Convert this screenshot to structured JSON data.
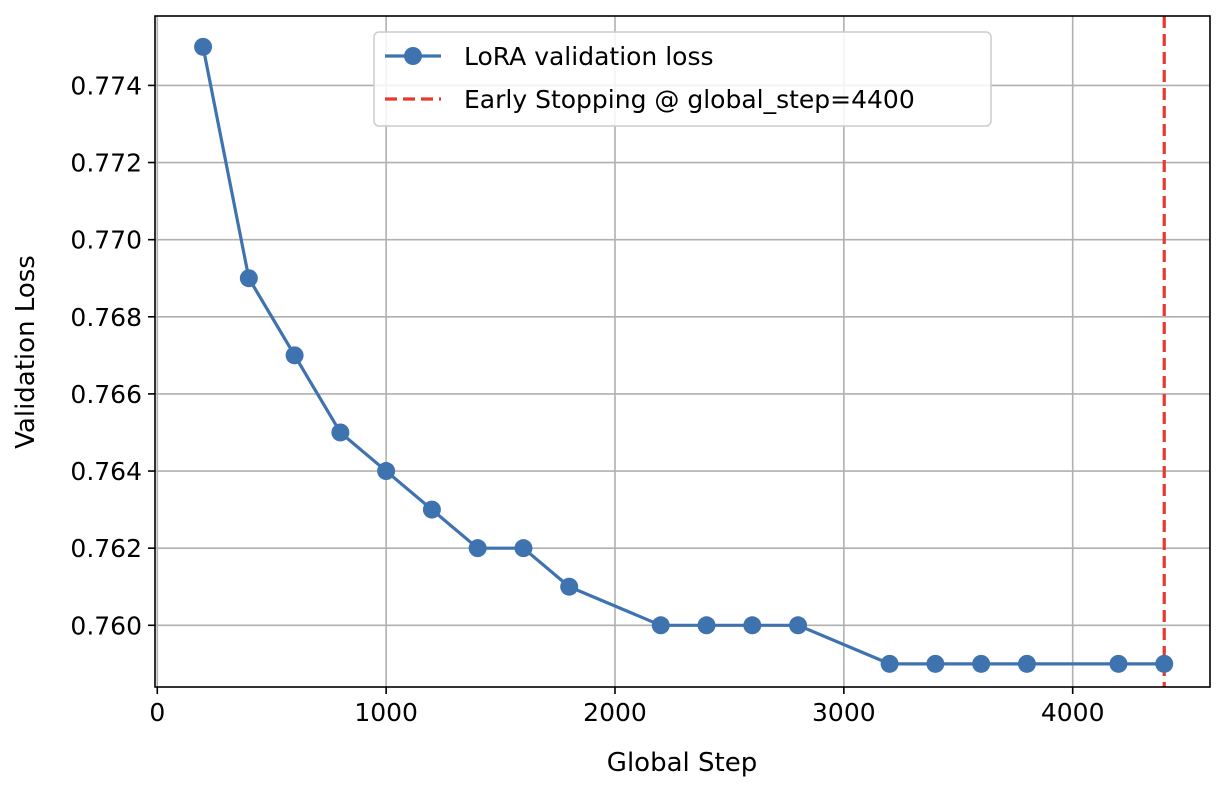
{
  "chart_data": {
    "type": "line",
    "title": "",
    "xlabel": "Global Step",
    "ylabel": "Validation Loss",
    "xlim": [
      -10,
      4600
    ],
    "ylim": [
      0.7584,
      0.7758
    ],
    "xticks": [
      0,
      1000,
      2000,
      3000,
      4000
    ],
    "xtick_labels": [
      "0",
      "1000",
      "2000",
      "3000",
      "4000"
    ],
    "yticks": [
      0.76,
      0.762,
      0.764,
      0.766,
      0.768,
      0.77,
      0.772,
      0.774
    ],
    "ytick_labels": [
      "0.760",
      "0.762",
      "0.764",
      "0.766",
      "0.768",
      "0.770",
      "0.772",
      "0.774"
    ],
    "grid": true,
    "legend_position": "top-center",
    "series": [
      {
        "name": "LoRA validation loss",
        "color": "#3f73af",
        "marker": "circle",
        "x": [
          200,
          400,
          600,
          800,
          1000,
          1200,
          1400,
          1600,
          1800,
          2200,
          2400,
          2600,
          2800,
          3200,
          3400,
          3600,
          3800,
          4200,
          4400
        ],
        "y": [
          0.775,
          0.769,
          0.767,
          0.765,
          0.764,
          0.763,
          0.762,
          0.762,
          0.761,
          0.76,
          0.76,
          0.76,
          0.76,
          0.759,
          0.759,
          0.759,
          0.759,
          0.759,
          0.759
        ]
      }
    ],
    "vlines": [
      {
        "name": "Early Stopping @ global_step=4400",
        "x": 4400,
        "color": "#e8382f",
        "style": "dashed"
      }
    ]
  }
}
